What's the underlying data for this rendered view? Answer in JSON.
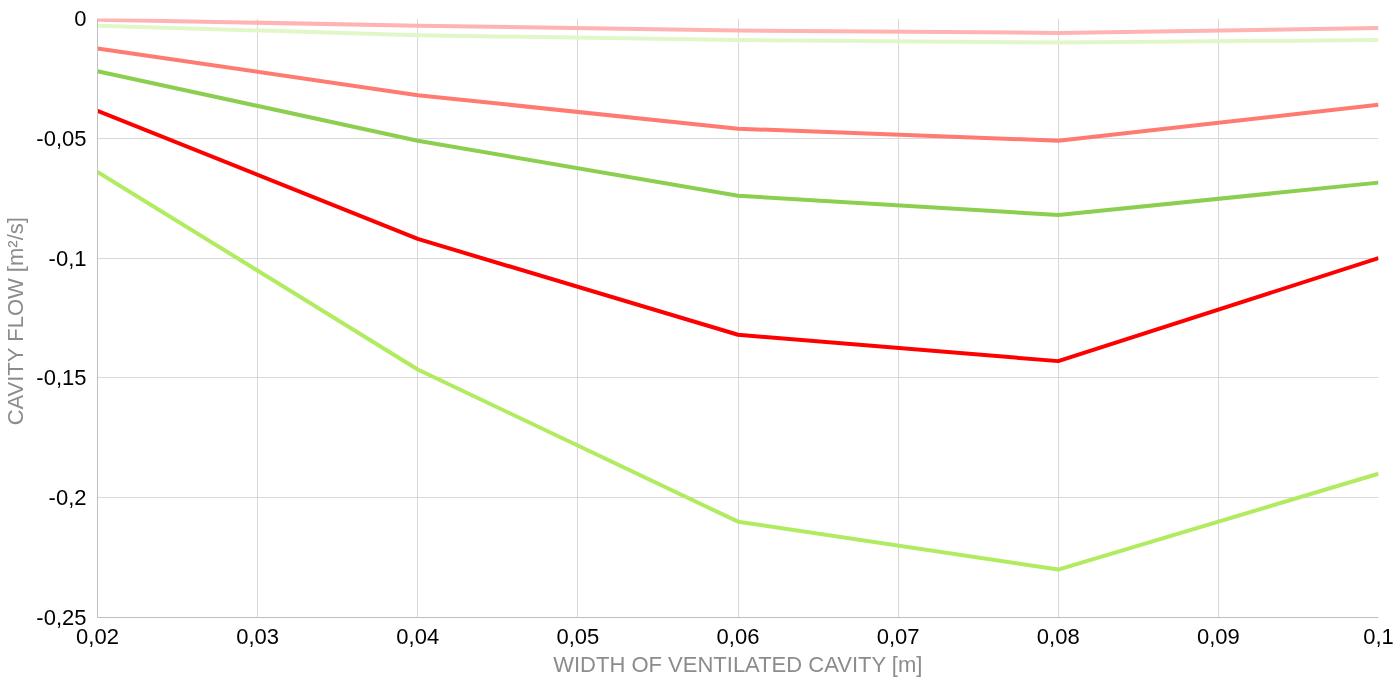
{
  "chart_data": {
    "type": "line",
    "xlabel": "WIDTH OF VENTILATED CAVITY [m]",
    "ylabel": "CAVITY  FLOW [m²/s]",
    "x": [
      0.02,
      0.04,
      0.06,
      0.08,
      0.1
    ],
    "series": [
      {
        "color": "#ffb3b3",
        "values": [
          -0.0005,
          -0.003,
          -0.005,
          -0.006,
          -0.004
        ]
      },
      {
        "color": "#e2f7c8",
        "values": [
          -0.003,
          -0.007,
          -0.009,
          -0.01,
          -0.009
        ]
      },
      {
        "color": "#ff7a70",
        "values": [
          -0.0125,
          -0.032,
          -0.046,
          -0.051,
          -0.036
        ]
      },
      {
        "color": "#8ccf50",
        "values": [
          -0.022,
          -0.051,
          -0.074,
          -0.082,
          -0.0685
        ]
      },
      {
        "color": "#ff0000",
        "values": [
          -0.0385,
          -0.092,
          -0.132,
          -0.143,
          -0.1
        ]
      },
      {
        "color": "#b0eb60",
        "values": [
          -0.064,
          -0.1465,
          -0.21,
          -0.23,
          -0.19
        ]
      }
    ],
    "xlim": [
      0.02,
      0.1
    ],
    "ylim": [
      -0.25,
      0
    ],
    "xticks": [
      {
        "value": 0.02,
        "label": "0,02"
      },
      {
        "value": 0.03,
        "label": "0,03"
      },
      {
        "value": 0.04,
        "label": "0,04"
      },
      {
        "value": 0.05,
        "label": "0,05"
      },
      {
        "value": 0.06,
        "label": "0,06"
      },
      {
        "value": 0.07,
        "label": "0,07"
      },
      {
        "value": 0.08,
        "label": "0,08"
      },
      {
        "value": 0.09,
        "label": "0,09"
      },
      {
        "value": 0.1,
        "label": "0,1"
      }
    ],
    "yticks": [
      {
        "value": -0.25,
        "label": "-0,25"
      },
      {
        "value": -0.2,
        "label": "-0,2"
      },
      {
        "value": -0.15,
        "label": "-0,15"
      },
      {
        "value": -0.1,
        "label": "-0,1"
      },
      {
        "value": -0.05,
        "label": "-0,05"
      },
      0
    ],
    "grid": true,
    "marker": "none",
    "line_style": "solid"
  }
}
